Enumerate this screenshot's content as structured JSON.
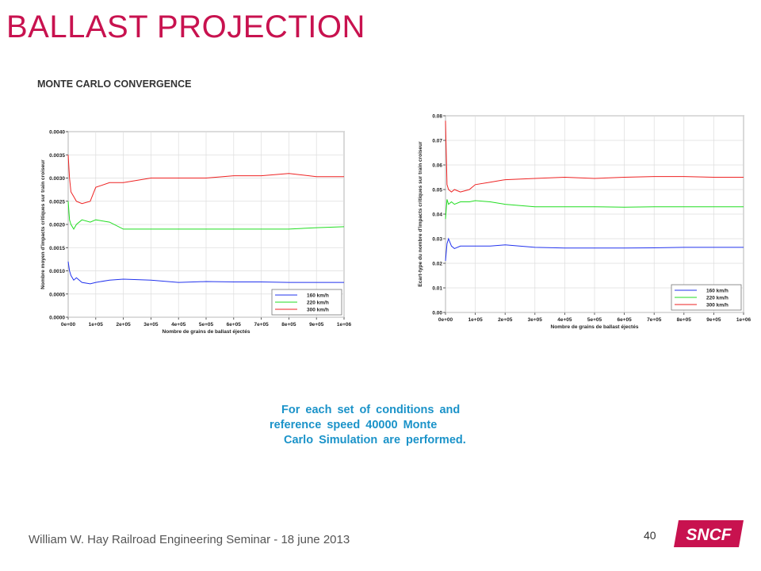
{
  "slide": {
    "title": "BALLAST PROJECTION",
    "subtitle": "MONTE CARLO CONVERGENCE",
    "caption_lines": [
      "For each set of conditions and",
      "reference speed 40000 Monte",
      "Carlo Simulation are performed."
    ],
    "footer": "William W. Hay Railroad Engineering Seminar - 18 june 2013",
    "page_number": "40",
    "logo_text": "SNCF",
    "colors": {
      "title": "#c8124f",
      "caption": "#1b93c9",
      "logo": "#c8124f"
    }
  },
  "chart_data": [
    {
      "type": "line",
      "xlabel": "Nombre de grains de ballast éjectés",
      "ylabel": "Nombre moyen d'impacts critiques sur train croiseur",
      "xlim": [
        0,
        1000000
      ],
      "ylim": [
        0,
        0.004
      ],
      "x_ticks": [
        "0e+00",
        "1e+05",
        "2e+05",
        "3e+05",
        "4e+05",
        "5e+05",
        "6e+05",
        "7e+05",
        "8e+05",
        "9e+05",
        "1e+06"
      ],
      "y_ticks": [
        "0.0000",
        "0.0005",
        "0.0010",
        "0.0015",
        "0.0020",
        "0.0025",
        "0.0030",
        "0.0035",
        "0.0040"
      ],
      "grid": true,
      "legend": "bottom-right",
      "series": [
        {
          "name": "160 km/h",
          "color": "#2233ee",
          "x": [
            0,
            5000,
            10000,
            20000,
            30000,
            50000,
            80000,
            100000,
            150000,
            200000,
            300000,
            400000,
            500000,
            600000,
            700000,
            800000,
            900000,
            1000000
          ],
          "y": [
            0.0012,
            0.001,
            0.0009,
            0.0008,
            0.00085,
            0.00075,
            0.00072,
            0.00075,
            0.0008,
            0.00082,
            0.0008,
            0.00075,
            0.00077,
            0.00076,
            0.00076,
            0.00075,
            0.00075,
            0.00075
          ]
        },
        {
          "name": "220 km/h",
          "color": "#22dd22",
          "x": [
            0,
            5000,
            10000,
            20000,
            30000,
            50000,
            80000,
            100000,
            150000,
            200000,
            300000,
            400000,
            500000,
            600000,
            700000,
            800000,
            900000,
            1000000
          ],
          "y": [
            0.0025,
            0.0021,
            0.002,
            0.0019,
            0.002,
            0.0021,
            0.00205,
            0.0021,
            0.00205,
            0.0019,
            0.0019,
            0.0019,
            0.0019,
            0.0019,
            0.0019,
            0.0019,
            0.00193,
            0.00195
          ]
        },
        {
          "name": "300 km/h",
          "color": "#ee2222",
          "x": [
            0,
            5000,
            10000,
            20000,
            30000,
            50000,
            80000,
            100000,
            150000,
            200000,
            300000,
            400000,
            500000,
            600000,
            700000,
            800000,
            900000,
            1000000
          ],
          "y": [
            0.0035,
            0.003,
            0.0027,
            0.0026,
            0.0025,
            0.00245,
            0.0025,
            0.0028,
            0.0029,
            0.0029,
            0.003,
            0.003,
            0.003,
            0.00305,
            0.00305,
            0.0031,
            0.00303,
            0.00303
          ]
        }
      ]
    },
    {
      "type": "line",
      "xlabel": "Nombre de grains de ballast éjectés",
      "ylabel": "Ecart-type du nombre d'impacts critiques sur train croiseur",
      "xlim": [
        0,
        1000000
      ],
      "ylim": [
        0,
        0.08
      ],
      "x_ticks": [
        "0e+00",
        "1e+05",
        "2e+05",
        "3e+05",
        "4e+05",
        "5e+05",
        "6e+05",
        "7e+05",
        "8e+05",
        "9e+05",
        "1e+06"
      ],
      "y_ticks": [
        "0.00",
        "0.01",
        "0.02",
        "0.03",
        "0.04",
        "0.05",
        "0.06",
        "0.07",
        "0.08"
      ],
      "grid": true,
      "legend": "bottom-right",
      "series": [
        {
          "name": "160 km/h",
          "color": "#2233ee",
          "x": [
            0,
            5000,
            10000,
            20000,
            30000,
            50000,
            80000,
            100000,
            150000,
            200000,
            300000,
            400000,
            500000,
            600000,
            700000,
            800000,
            900000,
            1000000
          ],
          "y": [
            0.021,
            0.028,
            0.03,
            0.027,
            0.026,
            0.027,
            0.027,
            0.027,
            0.027,
            0.0275,
            0.0265,
            0.0262,
            0.0262,
            0.0262,
            0.0263,
            0.0265,
            0.0265,
            0.0265
          ]
        },
        {
          "name": "220 km/h",
          "color": "#22dd22",
          "x": [
            0,
            5000,
            10000,
            20000,
            30000,
            50000,
            80000,
            100000,
            150000,
            200000,
            300000,
            400000,
            500000,
            600000,
            700000,
            800000,
            900000,
            1000000
          ],
          "y": [
            0.038,
            0.046,
            0.044,
            0.045,
            0.044,
            0.045,
            0.045,
            0.0455,
            0.045,
            0.044,
            0.043,
            0.043,
            0.043,
            0.0428,
            0.043,
            0.043,
            0.043,
            0.043
          ]
        },
        {
          "name": "300 km/h",
          "color": "#ee2222",
          "x": [
            0,
            5000,
            10000,
            20000,
            30000,
            50000,
            80000,
            100000,
            150000,
            200000,
            300000,
            400000,
            500000,
            600000,
            700000,
            800000,
            900000,
            1000000
          ],
          "y": [
            0.078,
            0.052,
            0.05,
            0.049,
            0.05,
            0.049,
            0.05,
            0.052,
            0.053,
            0.054,
            0.0545,
            0.055,
            0.0545,
            0.055,
            0.0553,
            0.0553,
            0.055,
            0.055
          ]
        }
      ]
    }
  ]
}
